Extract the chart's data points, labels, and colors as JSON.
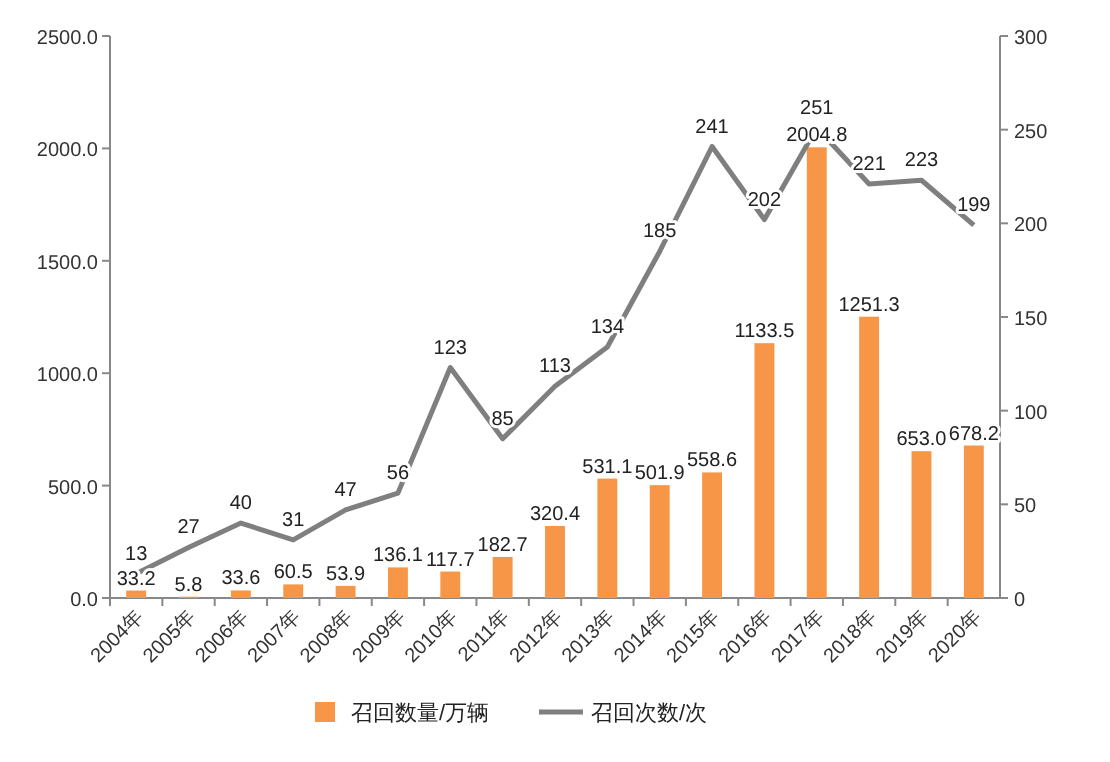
{
  "chart_data": {
    "type": "bar",
    "categories": [
      "2004年",
      "2005年",
      "2006年",
      "2007年",
      "2008年",
      "2009年",
      "2010年",
      "2011年",
      "2012年",
      "2013年",
      "2014年",
      "2015年",
      "2016年",
      "2017年",
      "2018年",
      "2019年",
      "2020年"
    ],
    "series": [
      {
        "name": "召回数量/万辆",
        "color": "#f79646",
        "values": [
          33.2,
          5.8,
          33.6,
          60.5,
          53.9,
          136.1,
          117.7,
          182.7,
          320.4,
          531.1,
          501.9,
          558.6,
          1133.5,
          2004.8,
          1251.3,
          653.0,
          678.2
        ],
        "value_labels": [
          "33.2",
          "5.8",
          "33.6",
          "60.5",
          "53.9",
          "136.1",
          "117.7",
          "182.7",
          "320.4",
          "531.1",
          "501.9",
          "558.6",
          "1133.5",
          "2004.8",
          "1251.3",
          "653.0",
          "678.2"
        ]
      },
      {
        "name": "召回次数/次",
        "type": "line",
        "axis": "y2",
        "color": "#7f7f7f",
        "values": [
          13,
          27,
          40,
          31,
          47,
          56,
          123,
          85,
          113,
          134,
          185,
          241,
          202,
          251,
          221,
          223,
          199
        ],
        "value_labels": [
          "13",
          "27",
          "40",
          "31",
          "47",
          "56",
          "123",
          "85",
          "113",
          "134",
          "185",
          "241",
          "202",
          "251",
          "221",
          "223",
          "199"
        ]
      }
    ],
    "ylim": [
      0,
      2500
    ],
    "yticks": [
      {
        "value": 0,
        "label": "0.0"
      },
      {
        "value": 500,
        "label": "500.0"
      },
      {
        "value": 1000,
        "label": "1000.0"
      },
      {
        "value": 1500,
        "label": "1500.0"
      },
      {
        "value": 2000,
        "label": "2000.0"
      },
      {
        "value": 2500,
        "label": "2500.0"
      }
    ],
    "y2lim": [
      0,
      300
    ],
    "y2ticks": [
      0,
      50,
      100,
      150,
      200,
      250,
      300
    ],
    "legend": "bottom"
  }
}
